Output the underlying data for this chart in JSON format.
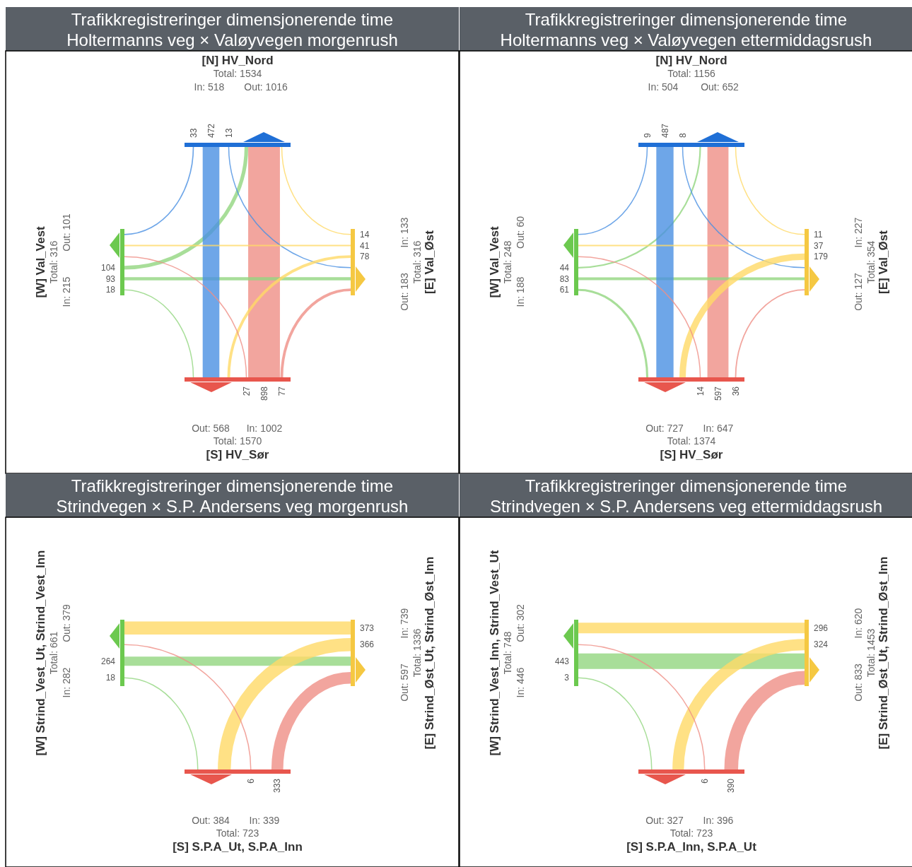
{
  "chart_data": [
    {
      "type": "other",
      "title": "Trafikkregistreringer dimensjonerende time",
      "subtitle": "Holtermanns veg × Valøyvegen morgenrush",
      "categories": [
        "[N] HV_Nord",
        "[E] Val_Øst",
        "[S] HV_Sør",
        "[W] Val_Vest"
      ],
      "data_labels": true,
      "series": [
        {
          "color": "#1f6fd6",
          "values": [
            null,
            14,
            898,
            104
          ],
          "colors": [
            null,
            "#ffd966",
            "#ef8f86",
            "#92d67f"
          ]
        },
        {
          "color": "#f5c842",
          "values": [
            13,
            null,
            77,
            93
          ],
          "colors": [
            "#4a90e2",
            null,
            "#ef8f86",
            "#92d67f"
          ]
        },
        {
          "color": "#e8564d",
          "values": [
            472,
            78,
            null,
            18
          ],
          "colors": [
            "#4a90e2",
            "#ffd966",
            null,
            "#92d67f"
          ]
        },
        {
          "color": "#6cc94f",
          "values": [
            33,
            41,
            27,
            null
          ],
          "colors": [
            "#4a90e2",
            "#ffd966",
            "#ef8f86",
            null
          ]
        }
      ],
      "annotations": [
        "Total: 1534",
        "In: 518",
        "Out: 1016",
        "Total: 316",
        "In: 133",
        "Out: 183",
        "Total: 1570",
        "In: 1002",
        "Out: 568",
        "Total: 316",
        "In: 215",
        "Out: 101"
      ]
    },
    {
      "type": "other",
      "title": "Trafikkregistreringer dimensjonerende time",
      "subtitle": "Holtermanns veg × Valøyvegen ettermiddagsrush",
      "categories": [
        "[N] HV_Nord",
        "[E] Val_Øst",
        "[S] HV_Sør",
        "[W] Val_Vest"
      ],
      "data_labels": true,
      "series": [
        {
          "color": "#1f6fd6",
          "values": [
            null,
            11,
            597,
            44
          ],
          "colors": [
            null,
            "#ffd966",
            "#ef8f86",
            "#92d67f"
          ]
        },
        {
          "color": "#f5c842",
          "values": [
            8,
            null,
            36,
            83
          ],
          "colors": [
            "#4a90e2",
            null,
            "#ef8f86",
            "#92d67f"
          ]
        },
        {
          "color": "#e8564d",
          "values": [
            487,
            179,
            null,
            61
          ],
          "colors": [
            "#4a90e2",
            "#ffd966",
            null,
            "#92d67f"
          ]
        },
        {
          "color": "#6cc94f",
          "values": [
            9,
            37,
            14,
            null
          ],
          "colors": [
            "#4a90e2",
            "#ffd966",
            "#ef8f86",
            null
          ]
        }
      ],
      "annotations": [
        "Total: 1156",
        "In: 504",
        "Out: 652",
        "Total: 354",
        "In: 227",
        "Out: 127",
        "Total: 1374",
        "In: 647",
        "Out: 727",
        "Total: 248",
        "In: 188",
        "Out: 60"
      ]
    },
    {
      "type": "other",
      "title": "Trafikkregistreringer dimensjonerende time",
      "subtitle": "Strindvegen × S.P. Andersens veg morgenrush",
      "categories": [
        null,
        "[E] Strind_Øst_Ut, Strind_Øst_Inn",
        "[S] S.P.A_Ut, S.P.A_Inn",
        "[W] Strind_Vest_Ut, Strind_Vest_Inn"
      ],
      "data_labels": true,
      "series": [
        {
          "color": "#f5c842",
          "values": [
            null,
            null,
            333,
            264
          ],
          "colors": [
            null,
            null,
            "#ef8f86",
            "#92d67f"
          ]
        },
        {
          "color": "#e8564d",
          "values": [
            null,
            366,
            null,
            18
          ],
          "colors": [
            null,
            "#ffd966",
            null,
            "#92d67f"
          ]
        },
        {
          "color": "#6cc94f",
          "values": [
            null,
            373,
            6,
            null
          ],
          "colors": [
            null,
            "#ffd966",
            "#ef8f86",
            null
          ]
        }
      ],
      "annotations": [
        "Total: 1336",
        "In: 739",
        "Out: 597",
        "Total: 723",
        "In: 339",
        "Out: 384",
        "Total: 661",
        "In: 282",
        "Out: 379"
      ]
    },
    {
      "type": "other",
      "title": "Trafikkregistreringer dimensjonerende time",
      "subtitle": "Strindvegen × S.P. Andersens veg ettermiddagsrush",
      "categories": [
        null,
        "[E] Strind_Øst_Ut, Strind_Øst_Inn",
        "[S] S.P.A_Inn, S.P.A_Ut",
        "[W] Strind_Vest_Inn, Strind_Vest_Ut"
      ],
      "data_labels": true,
      "series": [
        {
          "color": "#f5c842",
          "values": [
            null,
            null,
            390,
            443
          ],
          "colors": [
            null,
            null,
            "#ef8f86",
            "#92d67f"
          ]
        },
        {
          "color": "#e8564d",
          "values": [
            null,
            324,
            null,
            3
          ],
          "colors": [
            null,
            "#ffd966",
            null,
            "#92d67f"
          ]
        },
        {
          "color": "#6cc94f",
          "values": [
            null,
            296,
            6,
            null
          ],
          "colors": [
            null,
            "#ffd966",
            "#ef8f86",
            null
          ]
        }
      ],
      "annotations": [
        "Total: 1453",
        "In: 620",
        "Out: 833",
        "Total: 723",
        "In: 396",
        "Out: 327",
        "Total: 748",
        "In: 446",
        "Out: 302"
      ]
    }
  ]
}
